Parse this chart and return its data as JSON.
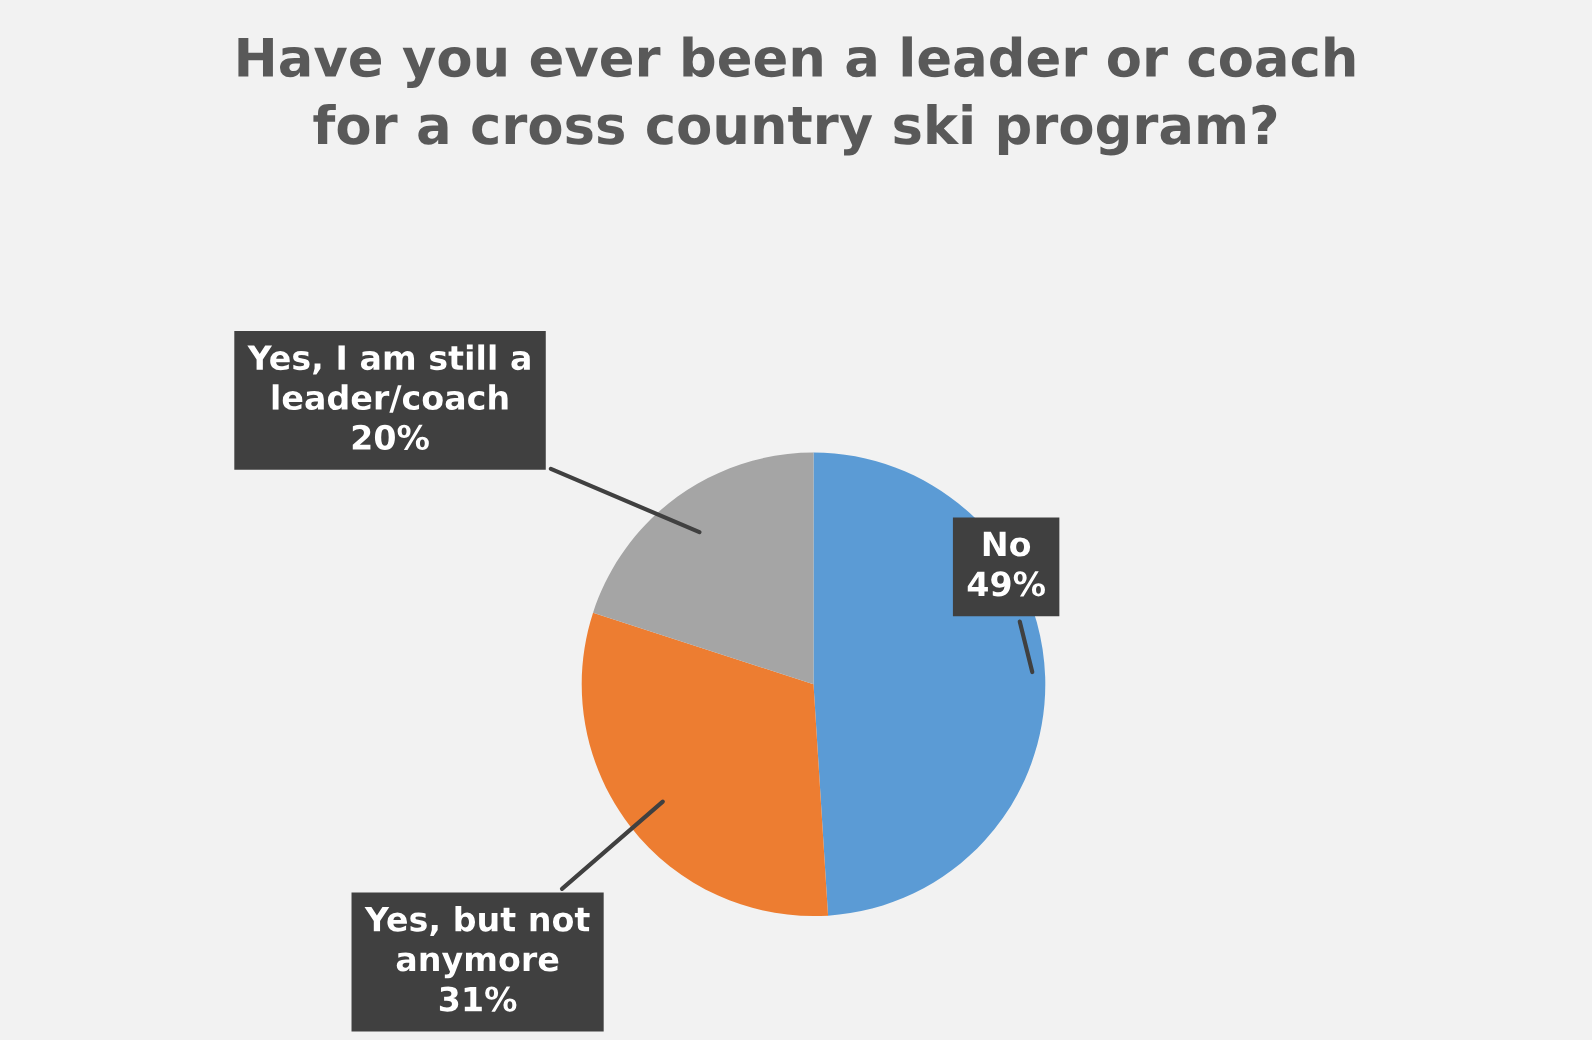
{
  "chart_data": {
    "type": "pie",
    "title": "Have you ever been a leader or coach for a cross country ski program?",
    "categories": [
      "No",
      "Yes, but not anymore",
      "Yes, I am still a leader/coach"
    ],
    "values": [
      49,
      31,
      20
    ],
    "value_labels": [
      "49%",
      "31%",
      "20%"
    ],
    "colors": [
      "#5b9bd5",
      "#ed7d31",
      "#a5a5a5"
    ]
  }
}
